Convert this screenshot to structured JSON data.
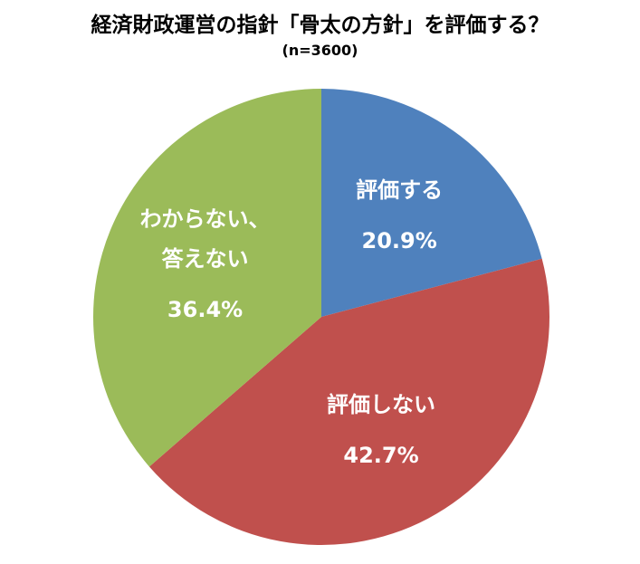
{
  "chart_data": {
    "type": "pie",
    "title": "経済財政運営の指針「骨太の方針」を評価する？",
    "subtitle": "(n=3600)",
    "categories": [
      "評価する",
      "評価しない",
      "わからない、\n答えない"
    ],
    "values": [
      20.9,
      42.7,
      36.4
    ],
    "value_labels": [
      "20.9%",
      "42.7%",
      "36.4%"
    ],
    "colors": [
      "#4f81bd",
      "#c0504d",
      "#9bbb59"
    ]
  }
}
